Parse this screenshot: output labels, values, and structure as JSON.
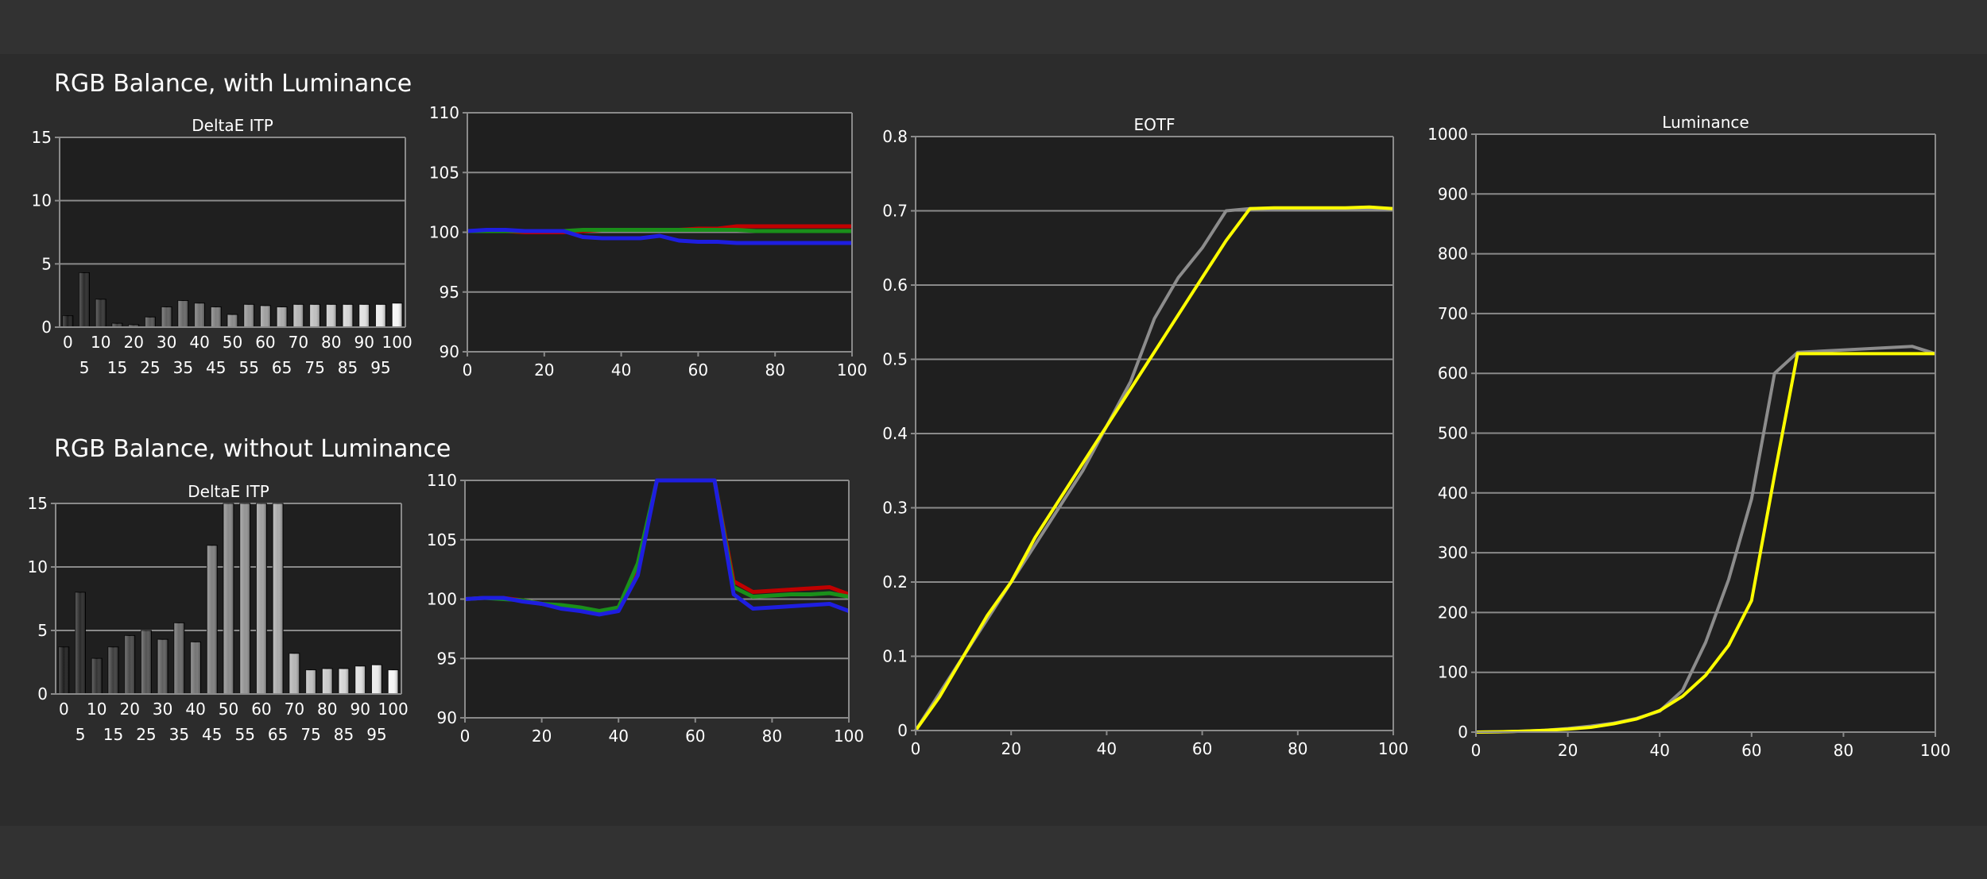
{
  "sections": {
    "with_luminance": "RGB Balance, with Luminance",
    "without_luminance": "RGB Balance, without Luminance"
  },
  "colors": {
    "background": "#2c2c2c",
    "plot_background": "#1f1f1f",
    "grid": "#8a8a8a",
    "axis_text": "#ffffff",
    "red": "#c00000",
    "green": "#1a8f1a",
    "blue": "#1e1ee0",
    "target": "#8c8c8c",
    "measured": "#ffff00"
  },
  "chart_data": [
    {
      "id": "deltae_with_lum",
      "type": "bar",
      "title": "DeltaE ITP",
      "categories": [
        "0",
        "5",
        "10",
        "15",
        "20",
        "25",
        "30",
        "35",
        "40",
        "45",
        "50",
        "55",
        "60",
        "65",
        "70",
        "75",
        "80",
        "85",
        "90",
        "95",
        "100"
      ],
      "values": [
        0.9,
        4.3,
        2.2,
        0.3,
        0.2,
        0.8,
        1.6,
        2.1,
        1.9,
        1.6,
        1.0,
        1.8,
        1.7,
        1.6,
        1.8,
        1.8,
        1.8,
        1.8,
        1.8,
        1.8,
        1.9
      ],
      "ylim": [
        0,
        15
      ],
      "yticks": [
        "0",
        "5",
        "10",
        "15"
      ],
      "xticks_upper": [
        "0",
        "10",
        "20",
        "30",
        "40",
        "50",
        "60",
        "70",
        "80",
        "90",
        "100"
      ],
      "xticks_lower": [
        "5",
        "15",
        "25",
        "35",
        "45",
        "55",
        "65",
        "75",
        "85",
        "95"
      ],
      "grid": true
    },
    {
      "id": "rgb_with_lum",
      "type": "line",
      "x": [
        0,
        5,
        10,
        15,
        20,
        25,
        30,
        35,
        40,
        45,
        50,
        55,
        60,
        65,
        70,
        75,
        80,
        85,
        90,
        95,
        100
      ],
      "series": [
        {
          "color": "red",
          "values": [
            100.1,
            100.1,
            100.1,
            100.0,
            100.0,
            100.0,
            100.1,
            100.2,
            100.2,
            100.2,
            100.2,
            100.2,
            100.3,
            100.3,
            100.5,
            100.5,
            100.5,
            100.5,
            100.5,
            100.5,
            100.5
          ]
        },
        {
          "color": "green",
          "values": [
            100.1,
            100.1,
            100.1,
            100.1,
            100.1,
            100.1,
            100.2,
            100.2,
            100.2,
            100.2,
            100.2,
            100.2,
            100.2,
            100.2,
            100.2,
            100.1,
            100.1,
            100.1,
            100.1,
            100.1,
            100.1
          ]
        },
        {
          "color": "blue",
          "values": [
            100.1,
            100.2,
            100.2,
            100.1,
            100.1,
            100.1,
            99.6,
            99.5,
            99.5,
            99.5,
            99.7,
            99.3,
            99.2,
            99.2,
            99.1,
            99.1,
            99.1,
            99.1,
            99.1,
            99.1,
            99.1
          ]
        }
      ],
      "ylim": [
        90,
        110
      ],
      "yticks": [
        "90",
        "95",
        "100",
        "105",
        "110"
      ],
      "xlim": [
        0,
        100
      ],
      "xticks": [
        "0",
        "20",
        "40",
        "60",
        "80",
        "100"
      ],
      "grid": true
    },
    {
      "id": "deltae_without_lum",
      "type": "bar",
      "title": "DeltaE ITP",
      "categories": [
        "0",
        "5",
        "10",
        "15",
        "20",
        "25",
        "30",
        "35",
        "40",
        "45",
        "50",
        "55",
        "60",
        "65",
        "70",
        "75",
        "80",
        "85",
        "90",
        "95",
        "100"
      ],
      "values": [
        3.7,
        8.0,
        2.8,
        3.7,
        4.6,
        5.0,
        4.3,
        5.6,
        4.1,
        11.7,
        15,
        15,
        15,
        15,
        3.2,
        1.9,
        2.0,
        2.0,
        2.2,
        2.3,
        1.9
      ],
      "ylim": [
        0,
        15
      ],
      "yticks": [
        "0",
        "5",
        "10",
        "15"
      ],
      "xticks_upper": [
        "0",
        "10",
        "20",
        "30",
        "40",
        "50",
        "60",
        "70",
        "80",
        "90",
        "100"
      ],
      "xticks_lower": [
        "5",
        "15",
        "25",
        "35",
        "45",
        "55",
        "65",
        "75",
        "85",
        "95"
      ],
      "grid": true
    },
    {
      "id": "rgb_without_lum",
      "type": "line",
      "x": [
        0,
        5,
        10,
        15,
        20,
        25,
        30,
        35,
        40,
        45,
        50,
        55,
        60,
        65,
        70,
        75,
        80,
        85,
        90,
        95,
        100
      ],
      "series": [
        {
          "color": "red",
          "values": [
            100.0,
            100.1,
            100.1,
            99.9,
            99.6,
            99.4,
            99.2,
            98.9,
            99.2,
            102.5,
            110,
            110,
            110,
            110,
            101.5,
            100.6,
            100.7,
            100.8,
            100.9,
            101.0,
            100.4
          ]
        },
        {
          "color": "green",
          "values": [
            100.0,
            100.1,
            100.0,
            99.9,
            99.6,
            99.5,
            99.3,
            99.0,
            99.3,
            103.0,
            110,
            110,
            110,
            110,
            101.0,
            100.2,
            100.3,
            100.4,
            100.4,
            100.5,
            100.2
          ]
        },
        {
          "color": "blue",
          "values": [
            100.0,
            100.1,
            100.1,
            99.8,
            99.6,
            99.2,
            99.0,
            98.7,
            99.0,
            102.0,
            110,
            110,
            110,
            110,
            100.4,
            99.2,
            99.3,
            99.4,
            99.5,
            99.6,
            99.0
          ]
        }
      ],
      "ylim": [
        90,
        110
      ],
      "yticks": [
        "90",
        "95",
        "100",
        "105",
        "110"
      ],
      "xlim": [
        0,
        100
      ],
      "xticks": [
        "0",
        "20",
        "40",
        "60",
        "80",
        "100"
      ],
      "grid": true
    },
    {
      "id": "eotf",
      "type": "line",
      "title": "EOTF",
      "x": [
        0,
        5,
        10,
        15,
        20,
        25,
        30,
        35,
        40,
        45,
        50,
        55,
        60,
        65,
        70,
        75,
        80,
        85,
        90,
        95,
        100
      ],
      "series": [
        {
          "color": "target",
          "values": [
            0.0,
            0.05,
            0.1,
            0.15,
            0.2,
            0.25,
            0.3,
            0.35,
            0.41,
            0.47,
            0.555,
            0.61,
            0.65,
            0.7,
            0.703,
            0.703,
            0.703,
            0.703,
            0.703,
            0.703,
            0.703
          ]
        },
        {
          "color": "measured",
          "values": [
            0.0,
            0.045,
            0.1,
            0.155,
            0.2,
            0.26,
            0.31,
            0.36,
            0.41,
            0.46,
            0.51,
            0.56,
            0.61,
            0.66,
            0.703,
            0.704,
            0.704,
            0.704,
            0.704,
            0.705,
            0.703
          ]
        }
      ],
      "ylim": [
        0,
        0.8
      ],
      "yticks": [
        "0",
        "0.1",
        "0.2",
        "0.3",
        "0.4",
        "0.5",
        "0.6",
        "0.7",
        "0.8"
      ],
      "xlim": [
        0,
        100
      ],
      "xticks": [
        "0",
        "20",
        "40",
        "60",
        "80",
        "100"
      ],
      "grid": true
    },
    {
      "id": "luminance",
      "type": "line",
      "title": "Luminance",
      "x": [
        0,
        5,
        10,
        15,
        20,
        25,
        30,
        35,
        40,
        45,
        50,
        55,
        60,
        65,
        70,
        75,
        80,
        85,
        90,
        95,
        100
      ],
      "series": [
        {
          "color": "target",
          "values": [
            0,
            0.5,
            1.5,
            3,
            6,
            10,
            15,
            23,
            35,
            70,
            150,
            255,
            390,
            600,
            635,
            637,
            639,
            641,
            643,
            645,
            633
          ]
        },
        {
          "color": "measured",
          "values": [
            0,
            0.5,
            1.5,
            3,
            5,
            8,
            14,
            22,
            36,
            60,
            95,
            145,
            220,
            430,
            633,
            633,
            633,
            633,
            633,
            633,
            633
          ]
        }
      ],
      "ylim": [
        0,
        1000
      ],
      "yticks": [
        "0",
        "100",
        "200",
        "300",
        "400",
        "500",
        "600",
        "700",
        "800",
        "900",
        "1000"
      ],
      "xlim": [
        0,
        100
      ],
      "xticks": [
        "0",
        "20",
        "40",
        "60",
        "80",
        "100"
      ],
      "grid": true
    }
  ]
}
